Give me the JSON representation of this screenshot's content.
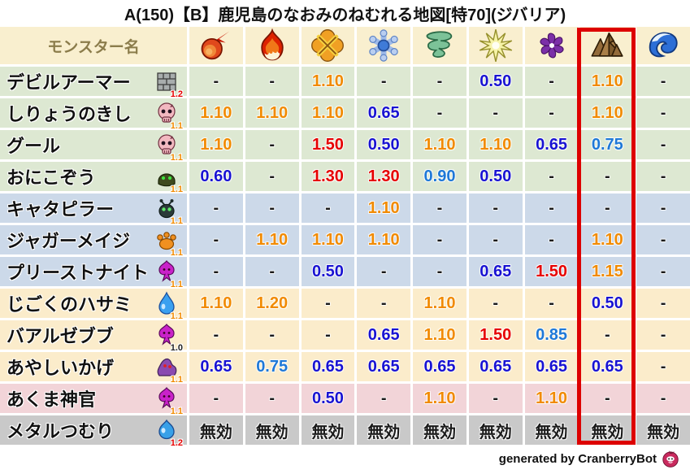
{
  "title": "A(150)【B】鹿児島のなおみのねむれる地図[特70](ジバリア)",
  "table": {
    "monster_column_header": "モンスター名",
    "element_columns": [
      "fireball-icon",
      "flame-icon",
      "explosion-icon",
      "snowflake-icon",
      "tornado-icon",
      "sparkle-icon",
      "pinwheel-icon",
      "mountain-icon",
      "wave-icon"
    ],
    "highlighted_column": "mountain-icon",
    "highlighted_column_index": 8,
    "immune_label": "無効",
    "rows": [
      {
        "name": "デビルアーマー",
        "icon": "brick-icon",
        "multiplier": "1.2",
        "multiplier_tone": "red",
        "bg": "green",
        "cells": [
          [
            "-",
            "black"
          ],
          [
            "-",
            "black"
          ],
          [
            "1.10",
            "orange"
          ],
          [
            "-",
            "black"
          ],
          [
            "-",
            "black"
          ],
          [
            "0.50",
            "blue"
          ],
          [
            "-",
            "black"
          ],
          [
            "1.10",
            "orange"
          ],
          [
            "-",
            "black"
          ]
        ]
      },
      {
        "name": "しりょうのきし",
        "icon": "skull-icon",
        "multiplier": "1.1",
        "multiplier_tone": "orange",
        "bg": "green",
        "cells": [
          [
            "1.10",
            "orange"
          ],
          [
            "1.10",
            "orange"
          ],
          [
            "1.10",
            "orange"
          ],
          [
            "0.65",
            "blue"
          ],
          [
            "-",
            "black"
          ],
          [
            "-",
            "black"
          ],
          [
            "-",
            "black"
          ],
          [
            "1.10",
            "orange"
          ],
          [
            "-",
            "black"
          ]
        ]
      },
      {
        "name": "グール",
        "icon": "skull-icon",
        "multiplier": "1.1",
        "multiplier_tone": "orange",
        "bg": "green",
        "cells": [
          [
            "1.10",
            "orange"
          ],
          [
            "-",
            "black"
          ],
          [
            "1.50",
            "red"
          ],
          [
            "0.50",
            "blue"
          ],
          [
            "1.10",
            "orange"
          ],
          [
            "1.10",
            "orange"
          ],
          [
            "0.65",
            "blue"
          ],
          [
            "0.75",
            "lightblue"
          ],
          [
            "-",
            "black"
          ]
        ]
      },
      {
        "name": "おにこぞう",
        "icon": "helmet-icon",
        "multiplier": "1.1",
        "multiplier_tone": "orange",
        "bg": "green",
        "cells": [
          [
            "0.60",
            "blue"
          ],
          [
            "-",
            "black"
          ],
          [
            "1.30",
            "red"
          ],
          [
            "1.30",
            "red"
          ],
          [
            "0.90",
            "lightblue"
          ],
          [
            "0.50",
            "blue"
          ],
          [
            "-",
            "black"
          ],
          [
            "-",
            "black"
          ],
          [
            "-",
            "black"
          ]
        ]
      },
      {
        "name": "キャタピラー",
        "icon": "bug-icon",
        "multiplier": "1.1",
        "multiplier_tone": "orange",
        "bg": "blue",
        "cells": [
          [
            "-",
            "black"
          ],
          [
            "-",
            "black"
          ],
          [
            "-",
            "black"
          ],
          [
            "1.10",
            "orange"
          ],
          [
            "-",
            "black"
          ],
          [
            "-",
            "black"
          ],
          [
            "-",
            "black"
          ],
          [
            "-",
            "black"
          ],
          [
            "-",
            "black"
          ]
        ]
      },
      {
        "name": "ジャガーメイジ",
        "icon": "paw-icon",
        "multiplier": "1.1",
        "multiplier_tone": "orange",
        "bg": "blue",
        "cells": [
          [
            "-",
            "black"
          ],
          [
            "1.10",
            "orange"
          ],
          [
            "1.10",
            "orange"
          ],
          [
            "1.10",
            "orange"
          ],
          [
            "-",
            "black"
          ],
          [
            "-",
            "black"
          ],
          [
            "-",
            "black"
          ],
          [
            "1.10",
            "orange"
          ],
          [
            "-",
            "black"
          ]
        ]
      },
      {
        "name": "プリーストナイト",
        "icon": "trident-icon",
        "multiplier": "1.1",
        "multiplier_tone": "orange",
        "bg": "blue",
        "cells": [
          [
            "-",
            "black"
          ],
          [
            "-",
            "black"
          ],
          [
            "0.50",
            "blue"
          ],
          [
            "-",
            "black"
          ],
          [
            "-",
            "black"
          ],
          [
            "0.65",
            "blue"
          ],
          [
            "1.50",
            "red"
          ],
          [
            "1.15",
            "orange"
          ],
          [
            "-",
            "black"
          ]
        ]
      },
      {
        "name": "じごくのハサミ",
        "icon": "waterdrop-icon",
        "multiplier": "1.1",
        "multiplier_tone": "orange",
        "bg": "cream",
        "cells": [
          [
            "1.10",
            "orange"
          ],
          [
            "1.20",
            "orange"
          ],
          [
            "-",
            "black"
          ],
          [
            "-",
            "black"
          ],
          [
            "1.10",
            "orange"
          ],
          [
            "-",
            "black"
          ],
          [
            "-",
            "black"
          ],
          [
            "0.50",
            "blue"
          ],
          [
            "-",
            "black"
          ]
        ]
      },
      {
        "name": "バアルゼブブ",
        "icon": "trident-icon",
        "multiplier": "1.0",
        "multiplier_tone": "black",
        "bg": "cream",
        "cells": [
          [
            "-",
            "black"
          ],
          [
            "-",
            "black"
          ],
          [
            "-",
            "black"
          ],
          [
            "0.65",
            "blue"
          ],
          [
            "1.10",
            "orange"
          ],
          [
            "1.50",
            "red"
          ],
          [
            "0.85",
            "lightblue"
          ],
          [
            "-",
            "black"
          ],
          [
            "-",
            "black"
          ]
        ]
      },
      {
        "name": "あやしいかげ",
        "icon": "shadow-icon",
        "multiplier": "1.1",
        "multiplier_tone": "orange",
        "bg": "cream",
        "cells": [
          [
            "0.65",
            "blue"
          ],
          [
            "0.75",
            "lightblue"
          ],
          [
            "0.65",
            "blue"
          ],
          [
            "0.65",
            "blue"
          ],
          [
            "0.65",
            "blue"
          ],
          [
            "0.65",
            "blue"
          ],
          [
            "0.65",
            "blue"
          ],
          [
            "0.65",
            "blue"
          ],
          [
            "-",
            "black"
          ]
        ]
      },
      {
        "name": "あくま神官",
        "icon": "trident-icon",
        "multiplier": "1.1",
        "multiplier_tone": "orange",
        "bg": "pink",
        "cells": [
          [
            "-",
            "black"
          ],
          [
            "-",
            "black"
          ],
          [
            "0.50",
            "blue"
          ],
          [
            "-",
            "black"
          ],
          [
            "1.10",
            "orange"
          ],
          [
            "-",
            "black"
          ],
          [
            "1.10",
            "orange"
          ],
          [
            "-",
            "black"
          ],
          [
            "-",
            "black"
          ]
        ]
      },
      {
        "name": "メタルつむり",
        "icon": "slime-icon",
        "multiplier": "1.2",
        "multiplier_tone": "red",
        "bg": "gray",
        "cells": [
          [
            "無効",
            "black"
          ],
          [
            "無効",
            "black"
          ],
          [
            "無効",
            "black"
          ],
          [
            "無効",
            "black"
          ],
          [
            "無効",
            "black"
          ],
          [
            "無効",
            "black"
          ],
          [
            "無効",
            "black"
          ],
          [
            "無効",
            "black"
          ],
          [
            "無効",
            "black"
          ]
        ]
      }
    ]
  },
  "footer": {
    "credit": "generated by CranberryBot",
    "icon": "cranberry-bot-icon"
  },
  "colors": {
    "value_orange": "#f18a00",
    "value_red": "#e60000",
    "value_dark_blue": "#1812d2",
    "value_light_blue": "#1e78d7",
    "value_black": "#1a1a1a",
    "row_green": "#dde8d2",
    "row_blue": "#ccd9e9",
    "row_cream": "#fbeccb",
    "row_pink": "#f2d4d8",
    "row_gray": "#c9c9c9",
    "header_bg": "#f9efcf",
    "header_text": "#8b7c4b",
    "highlight_red": "#dd0000",
    "page_bg": "#ffffff"
  }
}
